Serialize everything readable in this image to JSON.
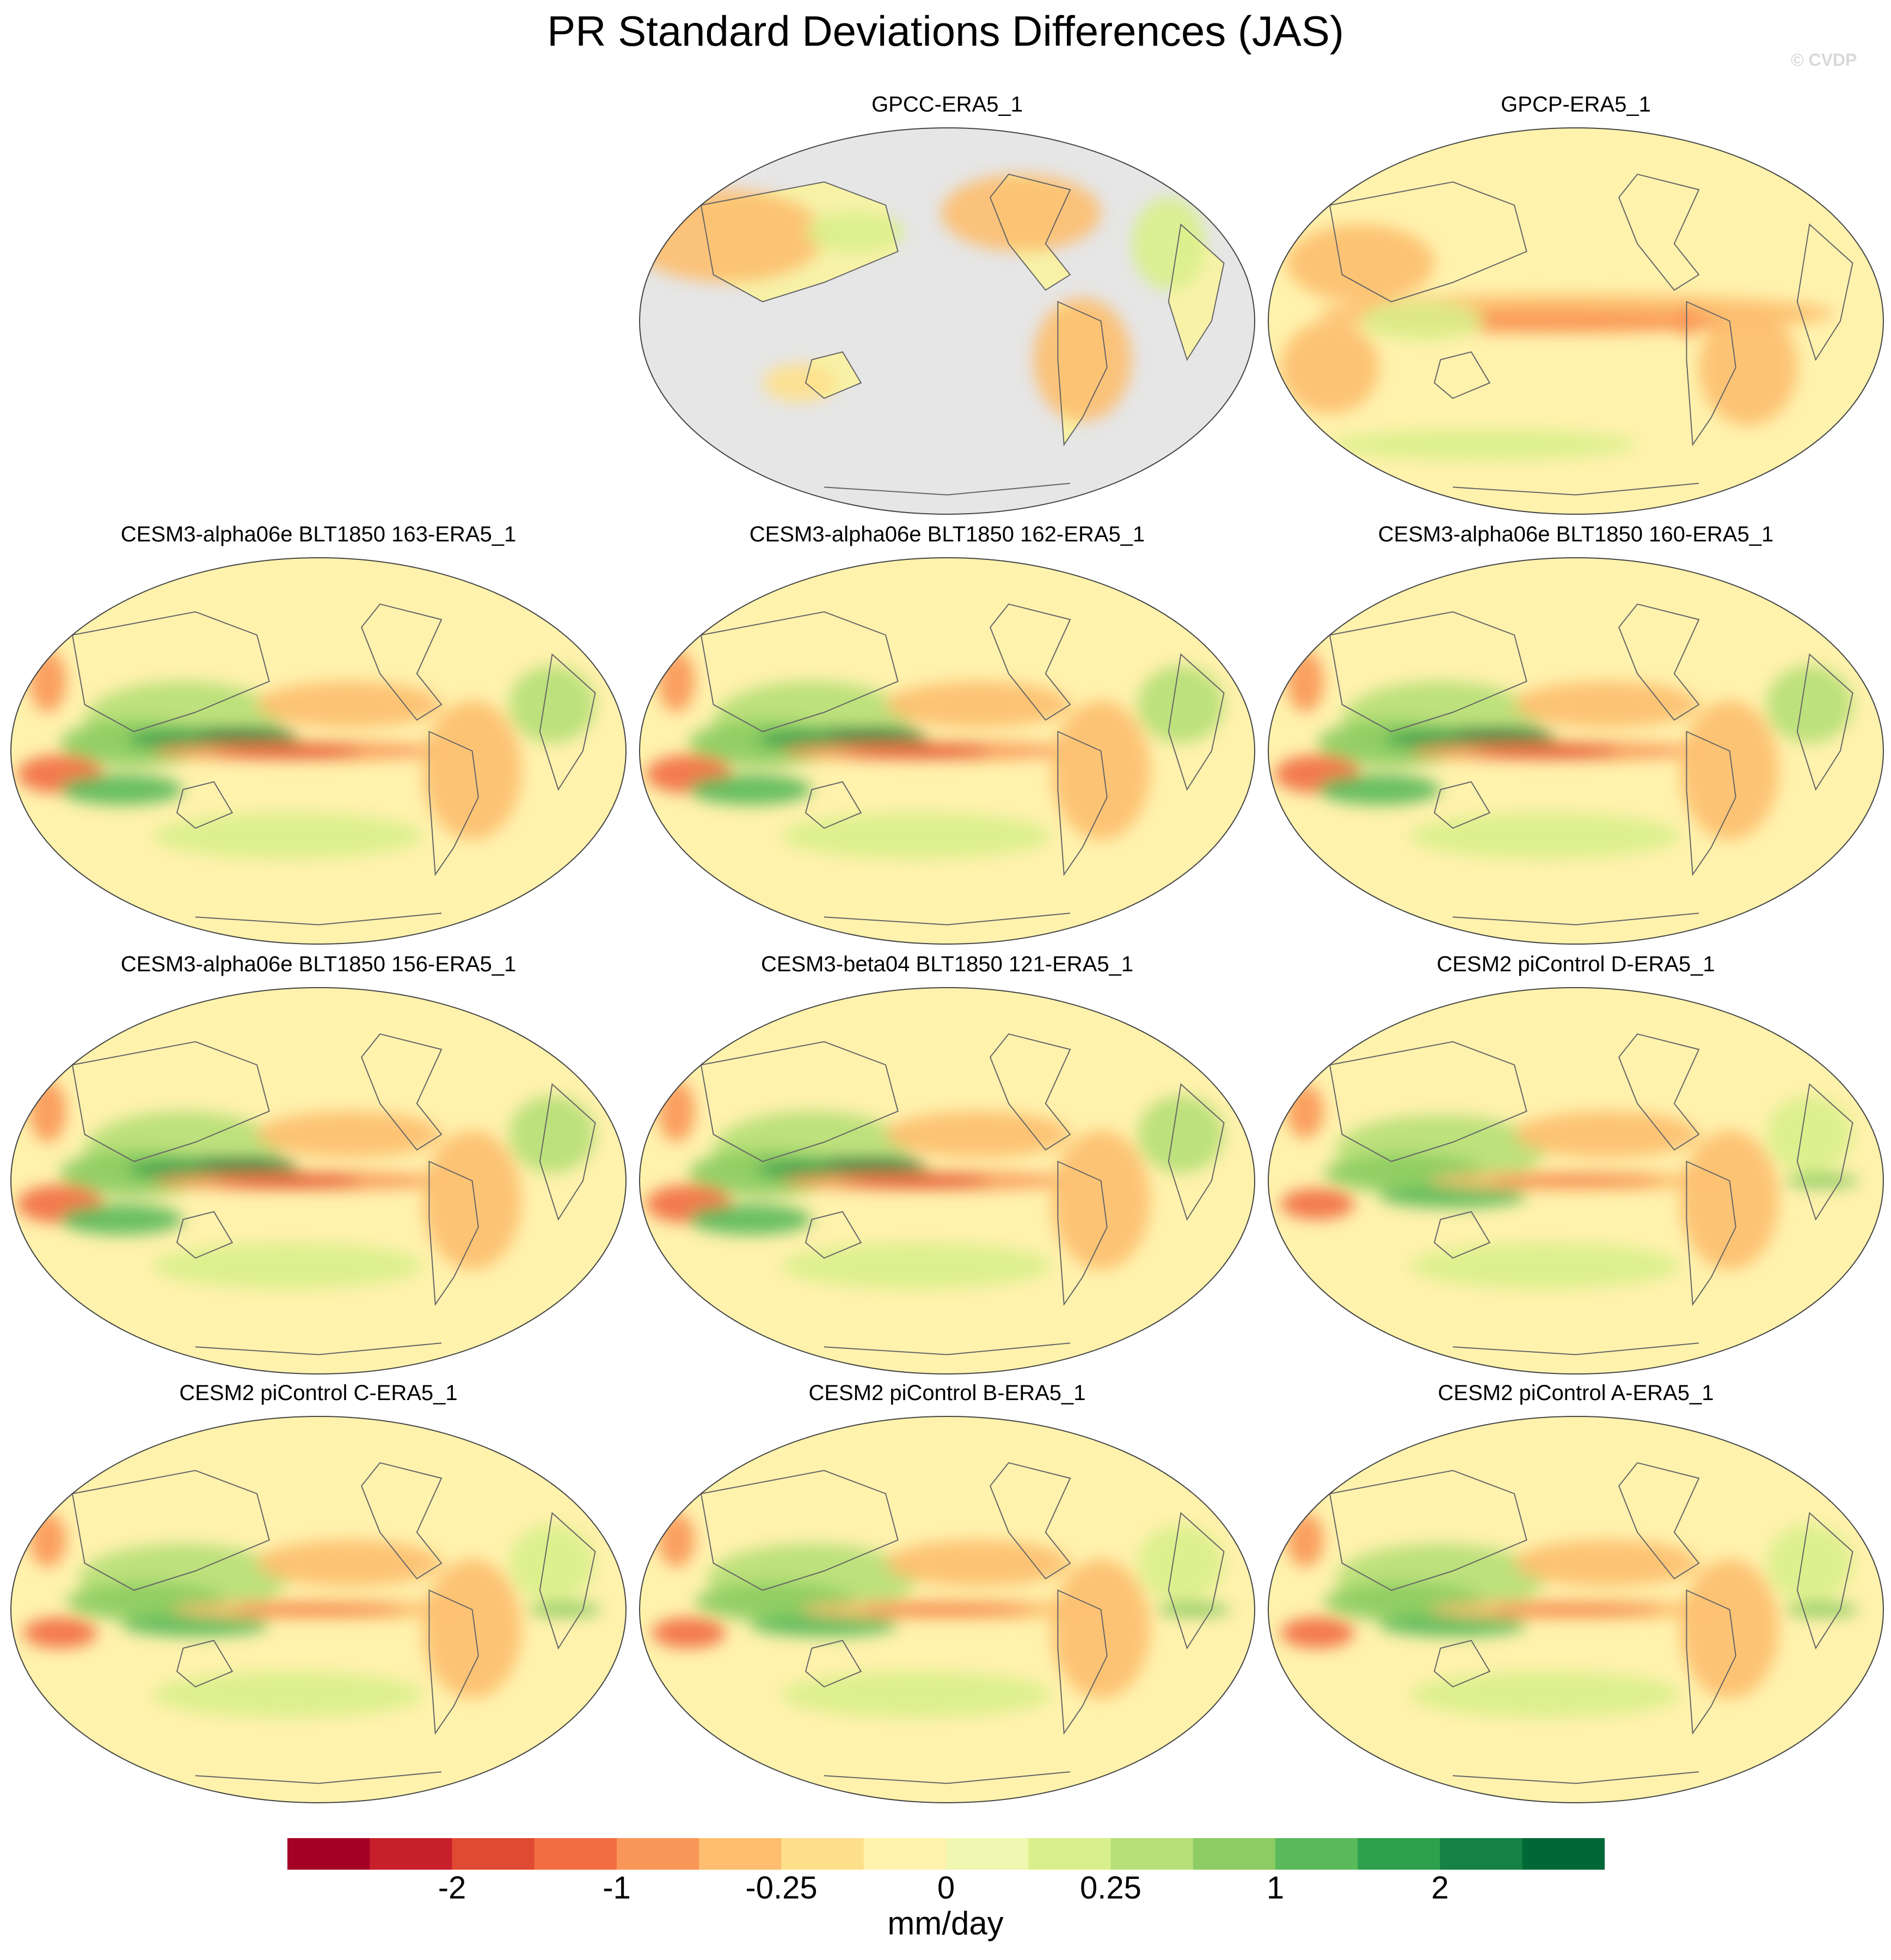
{
  "figure": {
    "title": "PR Standard Deviations Differences (JAS)",
    "watermark": "© CVDP"
  },
  "panels": [
    {
      "title": "GPCC-ERA5_1",
      "style": "gpcc",
      "row": 0,
      "col": 1
    },
    {
      "title": "GPCP-ERA5_1",
      "style": "gpcp",
      "row": 0,
      "col": 2
    },
    {
      "title": "CESM3-alpha06e BLT1850 163-ERA5_1",
      "style": "model",
      "row": 1,
      "col": 0
    },
    {
      "title": "CESM3-alpha06e BLT1850 162-ERA5_1",
      "style": "model",
      "row": 1,
      "col": 1
    },
    {
      "title": "CESM3-alpha06e BLT1850 160-ERA5_1",
      "style": "model",
      "row": 1,
      "col": 2
    },
    {
      "title": "CESM3-alpha06e BLT1850 156-ERA5_1",
      "style": "model",
      "row": 2,
      "col": 0
    },
    {
      "title": "CESM3-beta04 BLT1850 121-ERA5_1",
      "style": "model",
      "row": 2,
      "col": 1
    },
    {
      "title": "CESM2 piControl D-ERA5_1",
      "style": "model2",
      "row": 2,
      "col": 2
    },
    {
      "title": "CESM2 piControl C-ERA5_1",
      "style": "model2",
      "row": 3,
      "col": 0
    },
    {
      "title": "CESM2 piControl B-ERA5_1",
      "style": "model2",
      "row": 3,
      "col": 1
    },
    {
      "title": "CESM2 piControl A-ERA5_1",
      "style": "model2",
      "row": 3,
      "col": 2
    }
  ],
  "colorbar": {
    "colors": [
      "#a50026",
      "#c8202a",
      "#e04a32",
      "#f26d43",
      "#f99657",
      "#fdbe6f",
      "#fee08b",
      "#fff2ad",
      "#f0f7b0",
      "#d9ef8b",
      "#b6df77",
      "#8ccc62",
      "#5ab95a",
      "#2ea04e",
      "#158145",
      "#006837"
    ],
    "tick_labels": [
      "-2",
      "-1",
      "-0.25",
      "0",
      "0.25",
      "1",
      "2"
    ],
    "units": "mm/day"
  }
}
